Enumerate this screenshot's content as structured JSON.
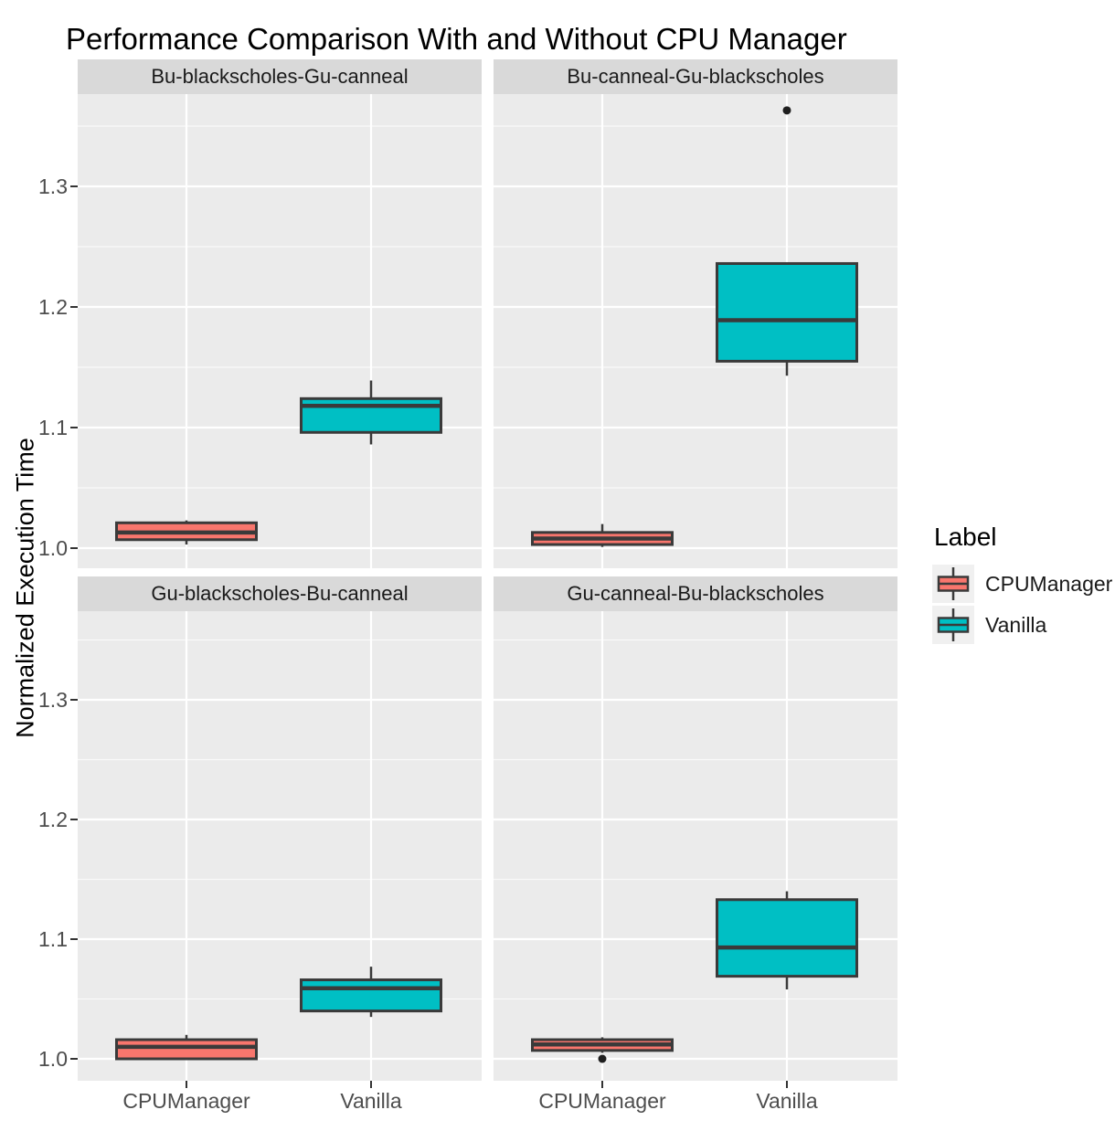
{
  "chart_data": {
    "type": "boxplot",
    "title": "Performance Comparison With and Without CPU Manager",
    "ylabel": "Normalized Execution Time",
    "xlabel": "",
    "categories": [
      "CPUManager",
      "Vanilla"
    ],
    "yticks": [
      1.0,
      1.1,
      1.2,
      1.3
    ],
    "ylim": [
      0.982,
      1.377
    ],
    "grid": "on",
    "legend": {
      "title": "Label",
      "position": "right",
      "entries": [
        {
          "label": "CPUManager",
          "color": "#F8766D"
        },
        {
          "label": "Vanilla",
          "color": "#00BFC4"
        }
      ]
    },
    "facets": [
      {
        "label": "Bu-blackscholes-Gu-canneal",
        "boxes": [
          {
            "category": "CPUManager",
            "color": "#F8766D",
            "min": 1.003,
            "q1": 1.007,
            "median": 1.013,
            "q3": 1.021,
            "max": 1.023,
            "outliers": []
          },
          {
            "category": "Vanilla",
            "color": "#00BFC4",
            "min": 1.086,
            "q1": 1.096,
            "median": 1.118,
            "q3": 1.124,
            "max": 1.139,
            "outliers": []
          }
        ]
      },
      {
        "label": "Bu-canneal-Gu-blackscholes",
        "boxes": [
          {
            "category": "CPUManager",
            "color": "#F8766D",
            "min": 1.001,
            "q1": 1.003,
            "median": 1.008,
            "q3": 1.013,
            "max": 1.02,
            "outliers": []
          },
          {
            "category": "Vanilla",
            "color": "#00BFC4",
            "min": 1.143,
            "q1": 1.155,
            "median": 1.189,
            "q3": 1.236,
            "max": 1.236,
            "outliers": [
              1.363
            ]
          }
        ]
      },
      {
        "label": "Gu-blackscholes-Bu-canneal",
        "boxes": [
          {
            "category": "CPUManager",
            "color": "#F8766D",
            "min": 1.0,
            "q1": 1.0,
            "median": 1.01,
            "q3": 1.016,
            "max": 1.02,
            "outliers": []
          },
          {
            "category": "Vanilla",
            "color": "#00BFC4",
            "min": 1.035,
            "q1": 1.04,
            "median": 1.059,
            "q3": 1.066,
            "max": 1.077,
            "outliers": []
          }
        ]
      },
      {
        "label": "Gu-canneal-Bu-blackscholes",
        "boxes": [
          {
            "category": "CPUManager",
            "color": "#F8766D",
            "min": 1.005,
            "q1": 1.007,
            "median": 1.012,
            "q3": 1.016,
            "max": 1.018,
            "outliers": [
              1.0
            ]
          },
          {
            "category": "Vanilla",
            "color": "#00BFC4",
            "min": 1.058,
            "q1": 1.069,
            "median": 1.093,
            "q3": 1.133,
            "max": 1.14,
            "outliers": []
          }
        ]
      }
    ],
    "colors": {
      "panel_background": "#EBEBEB",
      "strip_background": "#D9D9D9",
      "grid_major": "#FFFFFF",
      "grid_minor": "#FFFFFF",
      "box_border": "#3A3A3A",
      "outlier": "#1F1F1F",
      "axis_text": "#4D4D4D",
      "tick_mark": "#333333"
    }
  }
}
